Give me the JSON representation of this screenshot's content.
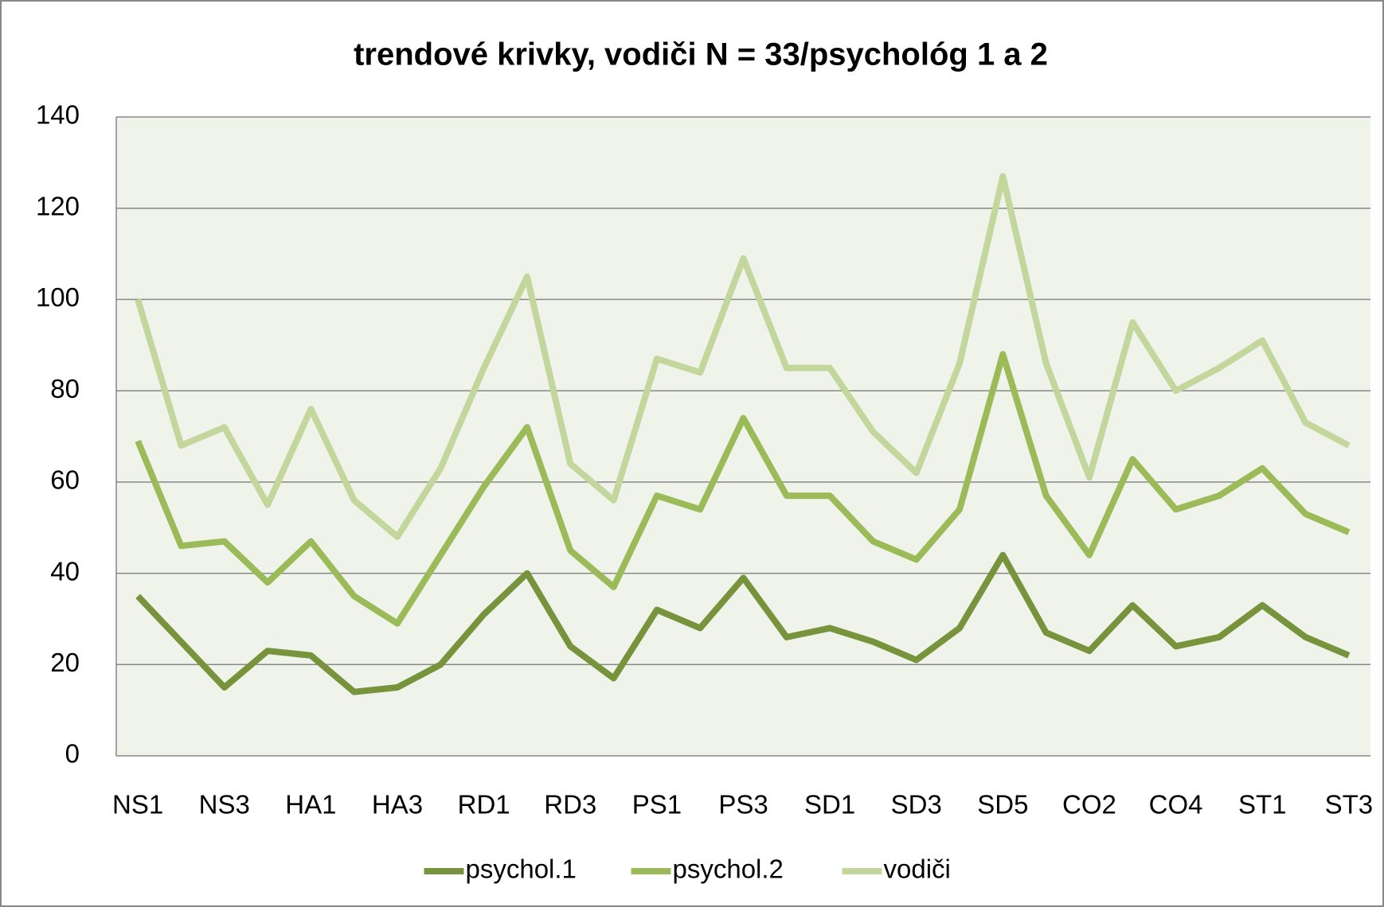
{
  "chart_data": {
    "type": "line",
    "title": "trendové krivky, vodiči N = 33/psychológ 1 a 2",
    "categories": [
      "NS1",
      null,
      "NS3",
      null,
      "HA1",
      null,
      "HA3",
      null,
      "RD1",
      null,
      "RD3",
      null,
      "PS1",
      null,
      "PS3",
      null,
      "SD1",
      null,
      "SD3",
      null,
      "SD5",
      null,
      "CO2",
      null,
      "CO4",
      null,
      "ST1",
      null,
      "ST3"
    ],
    "series": [
      {
        "name": "psychol.1",
        "color": "#77933c",
        "values": [
          35,
          25,
          15,
          23,
          22,
          14,
          15,
          20,
          31,
          40,
          24,
          17,
          32,
          28,
          39,
          26,
          28,
          25,
          21,
          28,
          44,
          27,
          23,
          33,
          24,
          26,
          33,
          26,
          22
        ]
      },
      {
        "name": "psychol.2",
        "color": "#9bbb59",
        "values": [
          69,
          46,
          47,
          38,
          47,
          35,
          29,
          44,
          59,
          72,
          45,
          37,
          57,
          54,
          74,
          57,
          57,
          47,
          43,
          54,
          88,
          57,
          44,
          65,
          54,
          57,
          63,
          53,
          49
        ]
      },
      {
        "name": "vodiči",
        "color": "#c3d69b",
        "values": [
          100,
          68,
          72,
          55,
          76,
          56,
          48,
          63,
          85,
          105,
          64,
          56,
          87,
          84,
          109,
          85,
          85,
          71,
          62,
          86,
          127,
          86,
          61,
          95,
          80,
          85,
          91,
          73,
          68
        ]
      }
    ],
    "ylim": [
      0,
      140
    ],
    "yticks": [
      0,
      20,
      40,
      60,
      80,
      100,
      120,
      140
    ],
    "grid": true,
    "legend": "bottom"
  }
}
